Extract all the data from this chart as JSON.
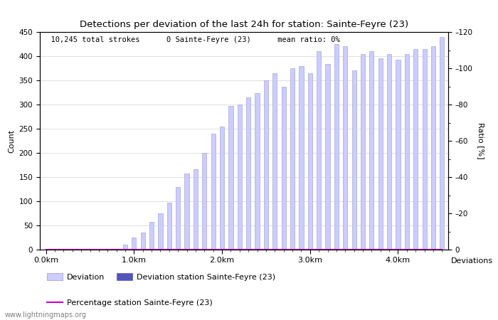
{
  "title": "Detections per deviation of the last 24h for station: Sainte-Feyre (23)",
  "ylabel_left": "Count",
  "ylabel_right": "Ratio [%]",
  "annotation_parts": [
    "10,245 total strokes",
    "0 Sainte-Feyre (23)",
    "mean ratio: 0%"
  ],
  "watermark": "www.lightningmaps.org",
  "ylim_left": [
    0,
    450
  ],
  "ylim_right": [
    0,
    120
  ],
  "yticks_left": [
    0,
    50,
    100,
    150,
    200,
    250,
    300,
    350,
    400,
    450
  ],
  "yticks_right": [
    0,
    20,
    40,
    60,
    80,
    100,
    120
  ],
  "xtick_labels": [
    "0.0km",
    "1.0km",
    "2.0km",
    "3.0km",
    "4.0km"
  ],
  "xtick_positions": [
    0,
    10,
    20,
    30,
    40
  ],
  "bar_color": "#ccccff",
  "bar_edge_color": "#9999cc",
  "station_bar_color": "#5555bb",
  "line_color": "#cc00cc",
  "bar_values": [
    0,
    0,
    0,
    0,
    0,
    0,
    1,
    1,
    2,
    10,
    25,
    35,
    58,
    75,
    97,
    130,
    158,
    166,
    200,
    240,
    255,
    297,
    300,
    314,
    323,
    350,
    365,
    337,
    375,
    380,
    365,
    410,
    384,
    425,
    420,
    370,
    405,
    410,
    395,
    405,
    392,
    405,
    415,
    415,
    420,
    440
  ],
  "station_bar_values": [
    0,
    0,
    0,
    0,
    0,
    0,
    0,
    0,
    0,
    0,
    0,
    0,
    0,
    0,
    0,
    0,
    0,
    0,
    0,
    0,
    0,
    0,
    0,
    0,
    0,
    0,
    0,
    0,
    0,
    0,
    0,
    0,
    0,
    0,
    0,
    0,
    0,
    0,
    0,
    0,
    0,
    0,
    0,
    0,
    0,
    0
  ],
  "percentage_values": [
    0,
    0,
    0,
    0,
    0,
    0,
    0,
    0,
    0,
    0,
    0,
    0,
    0,
    0,
    0,
    0,
    0,
    0,
    0,
    0,
    0,
    0,
    0,
    0,
    0,
    0,
    0,
    0,
    0,
    0,
    0,
    0,
    0,
    0,
    0,
    0,
    0,
    0,
    0,
    0,
    0,
    0,
    0,
    0,
    0,
    0
  ],
  "n_bars": 46,
  "legend_deviation": "Deviation",
  "legend_station": "Deviation station Sainte-Feyre (23)",
  "legend_percentage": "Percentage station Sainte-Feyre (23)",
  "deviations_label": "Deviations"
}
